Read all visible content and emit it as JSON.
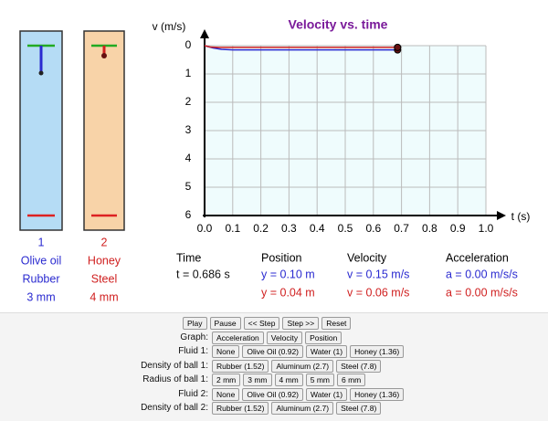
{
  "tubes": [
    {
      "number": "1",
      "fluid": "Olive oil",
      "ball": "Rubber",
      "radius": "3 mm"
    },
    {
      "number": "2",
      "fluid": "Honey",
      "ball": "Steel",
      "radius": "4 mm"
    }
  ],
  "graph": {
    "type": "line",
    "title": "Velocity vs. time",
    "y_label": "v (m/s)",
    "x_label": "t (s)",
    "xlim": [
      0,
      1.0
    ],
    "ylim": [
      0,
      6
    ],
    "y_inverted": true,
    "grid": true,
    "xticks": [
      {
        "value": 0,
        "label": "0.0"
      },
      0.1,
      0.2,
      0.3,
      0.4,
      0.5,
      0.6,
      0.7,
      0.8,
      0.9,
      {
        "value": 1,
        "label": "1.0"
      }
    ],
    "yticks": [
      0,
      1,
      2,
      3,
      4,
      5,
      6
    ],
    "series": [
      {
        "color": "#2a2ad0",
        "x": [
          0,
          0.03,
          0.06,
          0.1,
          0.2,
          0.4,
          0.686
        ],
        "values": [
          0,
          0.08,
          0.13,
          0.15,
          0.15,
          0.15,
          0.15
        ]
      },
      {
        "color": "#d02020",
        "x": [
          0,
          0.02,
          0.05,
          0.686
        ],
        "values": [
          0,
          0.05,
          0.06,
          0.06
        ]
      }
    ]
  },
  "readout": {
    "headers": [
      "Time",
      "Position",
      "Velocity",
      "Acceleration"
    ],
    "rows": [
      [
        "t = 0.686 s",
        "y = 0.10 m",
        "v = 0.15 m/s",
        "a = 0.00 m/s/s"
      ],
      [
        "y = 0.04 m",
        "v = 0.06 m/s",
        "a = 0.00 m/s/s"
      ]
    ]
  },
  "controls": [
    {
      "buttons": [
        "Play",
        "Pause",
        "<< Step",
        "Step >>",
        "Reset"
      ]
    },
    {
      "label": "Graph:",
      "buttons": [
        "Acceleration",
        "Velocity",
        "Position"
      ]
    },
    {
      "label": "Fluid 1:",
      "buttons": [
        "None",
        "Olive Oil (0.92)",
        "Water (1)",
        "Honey (1.36)"
      ]
    },
    {
      "label": "Density of ball 1:",
      "buttons": [
        "Rubber (1.52)",
        "Aluminum (2.7)",
        "Steel (7.8)"
      ]
    },
    {
      "label": "Radius of ball 1:",
      "buttons": [
        "2 mm",
        "3 mm",
        "4 mm",
        "5 mm",
        "6 mm"
      ]
    },
    {
      "label": "Fluid 2:",
      "buttons": [
        "None",
        "Olive Oil (0.92)",
        "Water (1)",
        "Honey (1.36)"
      ]
    },
    {
      "label": "Density of ball 2:",
      "buttons": [
        "Rubber (1.52)",
        "Aluminum (2.7)",
        "Steel (7.8)"
      ]
    }
  ]
}
